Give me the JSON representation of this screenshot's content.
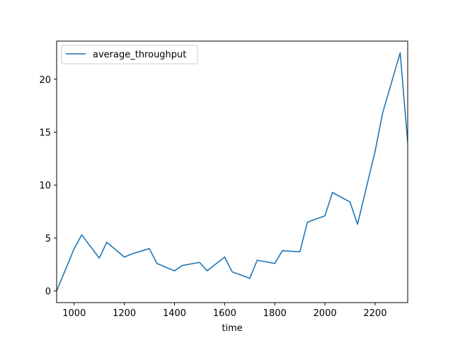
{
  "chart_data": {
    "type": "line",
    "title": "",
    "xlabel": "time",
    "ylabel": "",
    "xlim": [
      930,
      2330
    ],
    "ylim": [
      -1.1,
      23.6
    ],
    "grid": false,
    "legend_position": "top-left",
    "x_ticks": [
      1000,
      1200,
      1400,
      1600,
      1800,
      2000,
      2200
    ],
    "x_tick_labels": [
      "1000",
      "1200",
      "1400",
      "1600",
      "1800",
      "2000",
      "2200"
    ],
    "y_ticks": [
      0,
      5,
      10,
      15,
      20
    ],
    "y_tick_labels": [
      "0",
      "5",
      "10",
      "15",
      "20"
    ],
    "series": [
      {
        "name": "average_throughput",
        "color": "#1f77b4",
        "x": [
          930,
          1000,
          1030,
          1100,
          1130,
          1200,
          1230,
          1300,
          1330,
          1400,
          1430,
          1500,
          1530,
          1600,
          1630,
          1700,
          1730,
          1800,
          1830,
          1900,
          1930,
          2000,
          2030,
          2100,
          2130,
          2200,
          2230,
          2300,
          2330
        ],
        "y": [
          0,
          4.0,
          5.3,
          3.1,
          4.6,
          3.2,
          3.5,
          4.0,
          2.6,
          1.9,
          2.4,
          2.7,
          1.9,
          3.2,
          1.8,
          1.2,
          2.9,
          2.6,
          3.8,
          3.7,
          6.5,
          7.1,
          9.3,
          8.4,
          6.3,
          13.2,
          16.8,
          22.5,
          14.0
        ]
      }
    ]
  }
}
